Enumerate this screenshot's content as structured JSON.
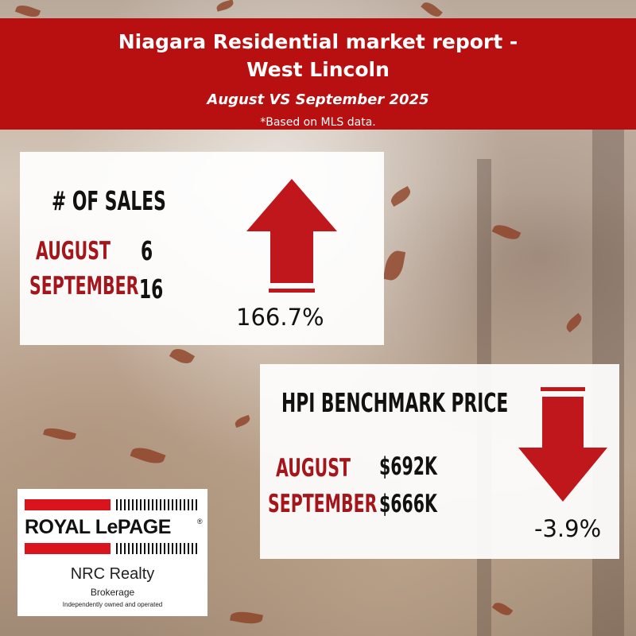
{
  "header": {
    "title_line1": "Niagara Residential market report -",
    "title_line2": "West Lincoln",
    "subtitle": "August VS September 2025",
    "note": "*Based on MLS data."
  },
  "sales": {
    "heading": "# OF SALES",
    "rows": [
      {
        "label": "AUGUST",
        "value": "6"
      },
      {
        "label": "SEPTEMBER",
        "value": "16"
      }
    ],
    "change": "166.7%",
    "direction": "up",
    "arrow_color": "#c0171c"
  },
  "hpi": {
    "heading": "HPI BENCHMARK PRICE",
    "rows": [
      {
        "label": "AUGUST",
        "value": "$692K"
      },
      {
        "label": "SEPTEMBER",
        "value": "$666K"
      }
    ],
    "change": "-3.9%",
    "direction": "down",
    "arrow_color": "#c0171c"
  },
  "logo": {
    "brand": "ROYAL LePAGE",
    "registered": "®",
    "office": "NRC Realty",
    "type": "Brokerage",
    "tagline": "Independently owned and operated"
  }
}
